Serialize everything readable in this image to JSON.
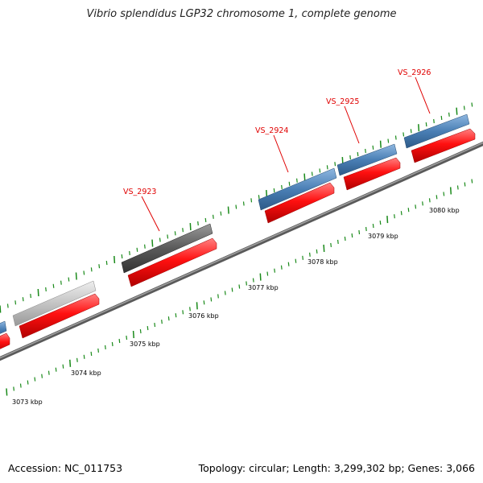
{
  "header": {
    "title": "Vibrio splendidus LGP32 chromosome 1, complete genome"
  },
  "footer": {
    "accession": "Accession: NC_011753",
    "summary": "Topology: circular; Length: 3,299,302 bp; Genes: 3,066"
  },
  "colors": {
    "background": "#ffffff",
    "backbone": "#7a7a7a",
    "cds_red": "#ff1010",
    "gene_blue": "#4a7fb5",
    "gene_dark_gray": "#5a5a5a",
    "gene_light_gray": "#c4c4c4",
    "tick_green": "#1a8a1a",
    "label_red": "#e00000"
  },
  "scale": {
    "labels": [
      "3073 kbp",
      "3074 kbp",
      "3075 kbp",
      "3076 kbp",
      "3077 kbp",
      "3078 kbp",
      "3079 kbp",
      "3080 kbp"
    ]
  },
  "genes": [
    {
      "label": "VS_2923",
      "type": "gene",
      "color": "dark_gray"
    },
    {
      "label": "VS_2924",
      "type": "gene",
      "color": "blue"
    },
    {
      "label": "VS_2925",
      "type": "gene",
      "color": "blue"
    },
    {
      "label": "VS_2926",
      "type": "gene",
      "color": "blue"
    }
  ]
}
